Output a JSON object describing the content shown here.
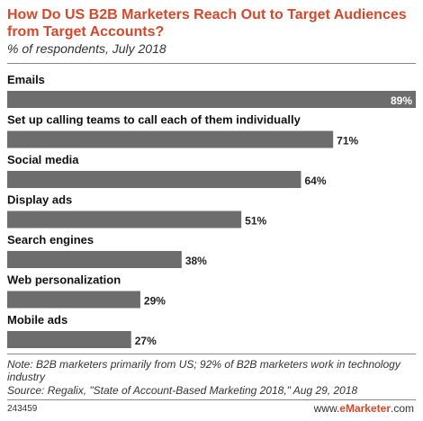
{
  "header": {
    "title": "How Do US B2B Marketers Reach Out to Target Audiences from Target Accounts?",
    "subtitle": "% of respondents, July 2018"
  },
  "chart_data": {
    "type": "bar",
    "orientation": "horizontal",
    "categories": [
      "Emails",
      "Set up calling teams to call each of them individually",
      "Social media",
      "Display ads",
      "Search engines",
      "Web personalization",
      "Mobile ads"
    ],
    "values": [
      89,
      71,
      64,
      51,
      38,
      29,
      27
    ],
    "value_labels": [
      "89%",
      "71%",
      "64%",
      "51%",
      "38%",
      "29%",
      "27%"
    ],
    "unit": "%",
    "xlim": [
      0,
      89
    ],
    "bar_color": "#6d6d6d",
    "grid": false,
    "legend": "none"
  },
  "footer": {
    "note": "Note: B2B marketers primarily from US; 92% of B2B marketers work in technology industry",
    "source": "Source: Regalix, \"State of Account-Based Marketing 2018,\" Aug 29, 2018",
    "chart_id": "243459",
    "brand_prefix": "www.",
    "brand_name": "eMarketer",
    "brand_suffix": ".com"
  },
  "colors": {
    "accent": "#d4492c",
    "bar": "#6d6d6d",
    "label_inside": "#ffffff",
    "label_outside": "#222222"
  }
}
